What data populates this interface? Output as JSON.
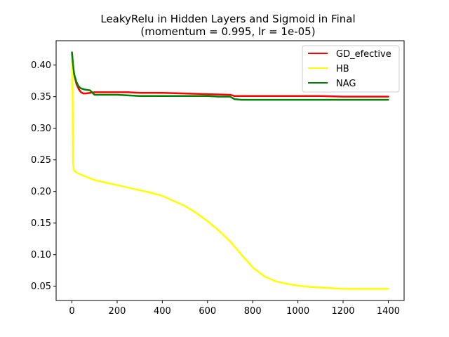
{
  "chart_data": {
    "type": "line",
    "title": "LeakyRelu in Hidden Layers and Sigmoid in Final",
    "subtitle": "(momentum = 0.995, lr = 1e-05)",
    "xlabel": "",
    "ylabel": "",
    "xlim": [
      -70,
      1470
    ],
    "ylim": [
      0.0275,
      0.4385
    ],
    "xticks": [
      0,
      200,
      400,
      600,
      800,
      1000,
      1200,
      1400
    ],
    "yticks": [
      0.05,
      0.1,
      0.15,
      0.2,
      0.25,
      0.3,
      0.35,
      0.4
    ],
    "xtick_labels": [
      "0",
      "200",
      "400",
      "600",
      "800",
      "1000",
      "1200",
      "1400"
    ],
    "ytick_labels": [
      "0.05",
      "0.10",
      "0.15",
      "0.20",
      "0.25",
      "0.30",
      "0.35",
      "0.40"
    ],
    "grid": false,
    "legend_position": "top-right",
    "series": [
      {
        "name": "GD_efective",
        "color": "#ff0000",
        "x": [
          0,
          5,
          10,
          20,
          30,
          40,
          50,
          60,
          80,
          100,
          150,
          200,
          250,
          300,
          400,
          500,
          600,
          700,
          720,
          800,
          900,
          1000,
          1100,
          1200,
          1300,
          1400
        ],
        "y": [
          0.42,
          0.395,
          0.385,
          0.37,
          0.362,
          0.357,
          0.355,
          0.355,
          0.356,
          0.357,
          0.357,
          0.357,
          0.357,
          0.356,
          0.356,
          0.355,
          0.354,
          0.353,
          0.351,
          0.351,
          0.351,
          0.351,
          0.351,
          0.35,
          0.35,
          0.35
        ]
      },
      {
        "name": "HB",
        "color": "#ffff00",
        "x": [
          0,
          3,
          5,
          8,
          10,
          20,
          30,
          50,
          100,
          150,
          200,
          250,
          300,
          350,
          400,
          450,
          500,
          550,
          600,
          650,
          700,
          750,
          800,
          850,
          900,
          950,
          1000,
          1050,
          1100,
          1150,
          1200,
          1250,
          1300,
          1350,
          1400
        ],
        "y": [
          0.42,
          0.35,
          0.245,
          0.236,
          0.233,
          0.23,
          0.228,
          0.225,
          0.218,
          0.214,
          0.21,
          0.206,
          0.202,
          0.198,
          0.193,
          0.185,
          0.177,
          0.166,
          0.153,
          0.138,
          0.121,
          0.1,
          0.08,
          0.066,
          0.058,
          0.054,
          0.051,
          0.049,
          0.048,
          0.047,
          0.046,
          0.046,
          0.046,
          0.046,
          0.046
        ]
      },
      {
        "name": "NAG",
        "color": "#008000",
        "x": [
          0,
          5,
          10,
          20,
          30,
          40,
          50,
          60,
          80,
          100,
          150,
          200,
          300,
          400,
          500,
          600,
          650,
          700,
          720,
          750,
          800,
          900,
          1000,
          1100,
          1200,
          1300,
          1400
        ],
        "y": [
          0.42,
          0.4,
          0.385,
          0.373,
          0.366,
          0.363,
          0.362,
          0.361,
          0.36,
          0.353,
          0.353,
          0.353,
          0.351,
          0.351,
          0.351,
          0.351,
          0.35,
          0.35,
          0.346,
          0.345,
          0.345,
          0.345,
          0.345,
          0.345,
          0.345,
          0.345,
          0.345
        ]
      }
    ]
  }
}
